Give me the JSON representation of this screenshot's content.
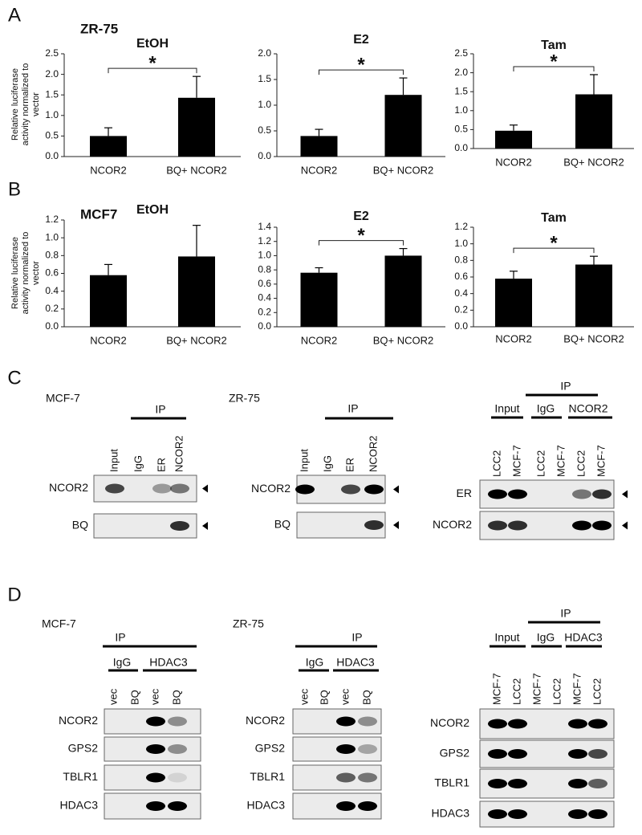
{
  "panels": [
    {
      "letter": "A",
      "title": "ZR-75"
    },
    {
      "letter": "B",
      "title": "MCF7"
    },
    {
      "letter": "C"
    },
    {
      "letter": "D"
    }
  ],
  "chart_data": [
    {
      "type": "bar",
      "title": "EtOH",
      "ylabel": "Relative luciferase activity normalized to vector",
      "categories": [
        "NCOR2",
        "BQ+ NCOR2"
      ],
      "values": [
        0.5,
        1.43
      ],
      "errors": [
        0.2,
        0.52
      ],
      "color": "#000000",
      "ylim": [
        0,
        2.5
      ],
      "yticks": [
        {
          "value": 0,
          "label": "0.0"
        },
        0.5,
        {
          "value": 1,
          "label": "1.0"
        },
        1.5,
        {
          "value": 2,
          "label": "2.0"
        },
        2.5
      ],
      "significance": "*"
    },
    {
      "type": "bar",
      "title": "E2",
      "categories": [
        "NCOR2",
        "BQ+ NCOR2"
      ],
      "values": [
        0.4,
        1.2
      ],
      "errors": [
        0.13,
        0.33
      ],
      "color": "#000000",
      "ylim": [
        0,
        2
      ],
      "yticks": [
        {
          "value": 0,
          "label": "0.0"
        },
        0.5,
        {
          "value": 1,
          "label": "1.0"
        },
        1.5,
        {
          "value": 2,
          "label": "2.0"
        }
      ],
      "significance": "*"
    },
    {
      "type": "bar",
      "title": "Tam",
      "categories": [
        "NCOR2",
        "BQ+ NCOR2"
      ],
      "values": [
        0.47,
        1.43
      ],
      "errors": [
        0.15,
        0.52
      ],
      "color": "#000000",
      "ylim": [
        0,
        2.5
      ],
      "yticks": [
        {
          "value": 0,
          "label": "0.0"
        },
        0.5,
        {
          "value": 1,
          "label": "1.0"
        },
        1.5,
        {
          "value": 2,
          "label": "2.0"
        },
        2.5
      ],
      "significance": "*"
    },
    {
      "type": "bar",
      "title": "EtOH",
      "ylabel": "Relative luciferase activity normalized to vector",
      "categories": [
        "NCOR2",
        "BQ+ NCOR2"
      ],
      "values": [
        0.58,
        0.79
      ],
      "errors": [
        0.12,
        0.35
      ],
      "color": "#000000",
      "ylim": [
        0,
        1.2
      ],
      "yticks": [
        {
          "value": 0,
          "label": "0.0"
        },
        0.2,
        0.4,
        0.6,
        0.8,
        {
          "value": 1,
          "label": "1.0"
        },
        1.2
      ]
    },
    {
      "type": "bar",
      "title": "E2",
      "categories": [
        "NCOR2",
        "BQ+ NCOR2"
      ],
      "values": [
        0.76,
        1.0
      ],
      "errors": [
        0.07,
        0.1
      ],
      "color": "#000000",
      "ylim": [
        0,
        1.4
      ],
      "yticks": [
        {
          "value": 0,
          "label": "0.0"
        },
        0.2,
        0.4,
        0.6,
        0.8,
        {
          "value": 1,
          "label": "1.0"
        },
        1.2,
        1.4
      ],
      "significance": "*"
    },
    {
      "type": "bar",
      "title": "Tam",
      "categories": [
        "NCOR2",
        "BQ+ NCOR2"
      ],
      "values": [
        0.58,
        0.75
      ],
      "errors": [
        0.09,
        0.1
      ],
      "color": "#000000",
      "ylim": [
        0,
        1.2
      ],
      "yticks": [
        {
          "value": 0,
          "label": "0.0"
        },
        0.2,
        0.4,
        0.6,
        0.8,
        {
          "value": 1,
          "label": "1.0"
        },
        1.2
      ],
      "significance": "*"
    }
  ],
  "blots": [
    {
      "cell_line": "MCF-7",
      "groups": [
        "IP"
      ],
      "lanes": [
        "Input",
        "IgG",
        "ER",
        "NCOR2"
      ],
      "rows": [
        "NCOR2",
        "BQ"
      ]
    },
    {
      "cell_line": "ZR-75",
      "groups": [
        "IP"
      ],
      "lanes": [
        "Input",
        "IgG",
        "ER",
        "NCOR2"
      ],
      "rows": [
        "NCOR2",
        "BQ"
      ]
    },
    {
      "groups": [
        "IP",
        "Input",
        "IgG",
        "NCOR2"
      ],
      "lanes": [
        "LCC2",
        "MCF-7",
        "LCC2",
        "MCF-7",
        "LCC2",
        "MCF-7"
      ],
      "rows": [
        "ER",
        "NCOR2"
      ]
    },
    {
      "cell_line": "MCF-7",
      "groups": [
        "IP",
        "IgG",
        "HDAC3"
      ],
      "lanes": [
        "vec",
        "BQ",
        "vec",
        "BQ"
      ],
      "rows": [
        "NCOR2",
        "GPS2",
        "TBLR1",
        "HDAC3"
      ]
    },
    {
      "cell_line": "ZR-75",
      "groups": [
        "IP",
        "IgG",
        "HDAC3"
      ],
      "lanes": [
        "vec",
        "BQ",
        "vec",
        "BQ"
      ],
      "rows": [
        "NCOR2",
        "GPS2",
        "TBLR1",
        "HDAC3"
      ]
    },
    {
      "groups": [
        "IP",
        "Input",
        "IgG",
        "HDAC3"
      ],
      "lanes": [
        "MCF-7",
        "LCC2",
        "MCF-7",
        "LCC2",
        "MCF-7",
        "LCC2"
      ],
      "rows": [
        "NCOR2",
        "GPS2",
        "TBLR1",
        "HDAC3"
      ]
    }
  ]
}
